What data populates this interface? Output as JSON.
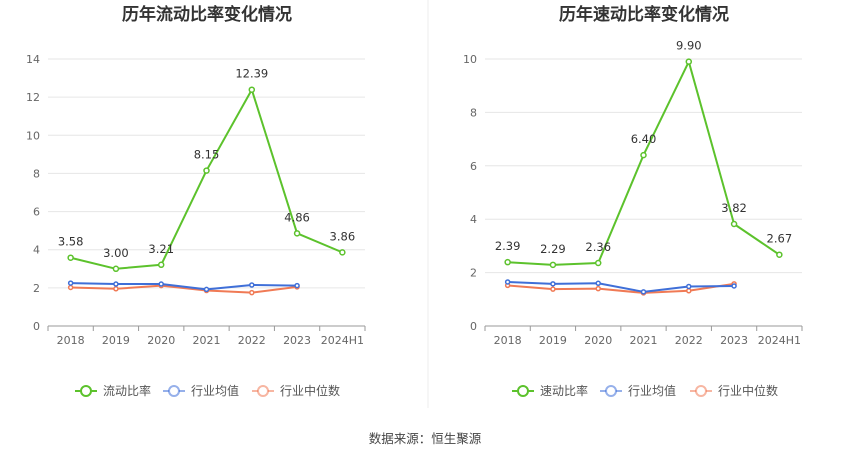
{
  "chart_data": [
    {
      "type": "line",
      "title": "历年流动比率变化情况",
      "categories": [
        "2018",
        "2019",
        "2020",
        "2021",
        "2022",
        "2023",
        "2024H1"
      ],
      "ylim": [
        0,
        14
      ],
      "yticks": [
        0,
        2,
        4,
        6,
        8,
        10,
        12,
        14
      ],
      "grid": true,
      "legend_position": "bottom",
      "series": [
        {
          "name": "流动比率",
          "color": "#5cc22c",
          "labeled": true,
          "values": [
            3.58,
            3.0,
            3.21,
            8.15,
            12.39,
            4.86,
            3.86
          ],
          "labels": [
            "3.58",
            "3.00",
            "3.21",
            "8.15",
            "12.39",
            "4.86",
            "3.86"
          ]
        },
        {
          "name": "行业均值",
          "color": "#3f6fd8",
          "labeled": false,
          "values": [
            2.25,
            2.2,
            2.2,
            1.92,
            2.15,
            2.12,
            null
          ]
        },
        {
          "name": "行业中位数",
          "color": "#f07a55",
          "labeled": false,
          "values": [
            2.02,
            1.95,
            2.12,
            1.86,
            1.75,
            2.05,
            null
          ]
        }
      ]
    },
    {
      "type": "line",
      "title": "历年速动比率变化情况",
      "categories": [
        "2018",
        "2019",
        "2020",
        "2021",
        "2022",
        "2023",
        "2024H1"
      ],
      "ylim": [
        0,
        10
      ],
      "yticks": [
        0,
        2,
        4,
        6,
        8,
        10
      ],
      "grid": true,
      "legend_position": "bottom",
      "series": [
        {
          "name": "速动比率",
          "color": "#5cc22c",
          "labeled": true,
          "values": [
            2.39,
            2.29,
            2.36,
            6.4,
            9.9,
            3.82,
            2.67
          ],
          "labels": [
            "2.39",
            "2.29",
            "2.36",
            "6.40",
            "9.90",
            "3.82",
            "2.67"
          ]
        },
        {
          "name": "行业均值",
          "color": "#3f6fd8",
          "labeled": false,
          "values": [
            1.65,
            1.58,
            1.6,
            1.28,
            1.48,
            1.5,
            null
          ]
        },
        {
          "name": "行业中位数",
          "color": "#f07a55",
          "labeled": false,
          "values": [
            1.52,
            1.38,
            1.4,
            1.24,
            1.32,
            1.58,
            null
          ]
        }
      ]
    }
  ],
  "footer": {
    "source": "数据来源：恒生聚源"
  }
}
